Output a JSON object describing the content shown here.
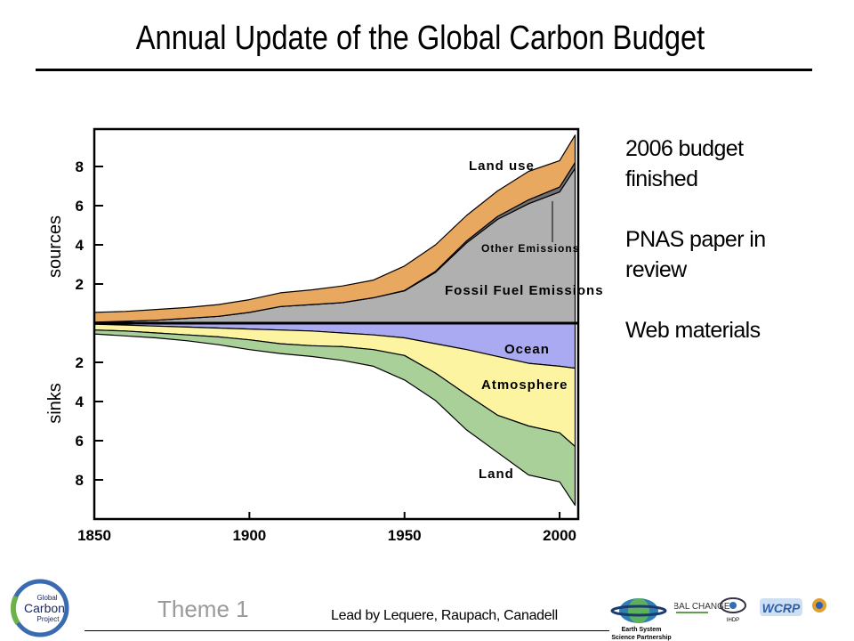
{
  "slide": {
    "title": "Annual Update of the Global Carbon Budget",
    "bullets": [
      "2006 budget\nfinished",
      "PNAS paper in\nreview",
      "Web materials"
    ],
    "theme_label": "Theme 1",
    "credit": "Lead by Lequere, Raupach, Canadell",
    "logos": {
      "gcp": {
        "line1": "Global",
        "line2": "Carbon",
        "line3": "Project"
      },
      "essp": {
        "line1": "Earth System",
        "line2": "Science Partnership"
      },
      "partners": [
        "GLOBAL CHANGE",
        "IHDP",
        "WCRP"
      ]
    }
  },
  "chart_data": {
    "type": "area",
    "x": [
      1850,
      1860,
      1870,
      1880,
      1890,
      1900,
      1910,
      1920,
      1930,
      1940,
      1950,
      1960,
      1970,
      1980,
      1990,
      2000,
      2005
    ],
    "xlim": [
      1850,
      2006
    ],
    "x_ticks": [
      1850,
      1900,
      1950,
      2000
    ],
    "ylim": [
      -10,
      10
    ],
    "y_tick_values": [
      8,
      6,
      4,
      2,
      -2,
      -4,
      -6,
      -8
    ],
    "y_tick_labels": [
      "8",
      "6",
      "4",
      "2",
      "2",
      "4",
      "6",
      "8"
    ],
    "ylabel_top": "sources",
    "ylabel_bottom": "sinks",
    "sources": [
      {
        "name": "Fossil Fuel Emissions",
        "color": "#b0b0b0",
        "values": [
          0.05,
          0.1,
          0.15,
          0.25,
          0.35,
          0.55,
          0.85,
          0.95,
          1.05,
          1.3,
          1.65,
          2.6,
          4.1,
          5.3,
          6.1,
          6.7,
          7.9
        ]
      },
      {
        "name": "Other Emissions",
        "color": "#707070",
        "values": [
          0,
          0,
          0,
          0,
          0,
          0,
          0,
          0,
          0,
          0,
          0.02,
          0.05,
          0.1,
          0.15,
          0.2,
          0.25,
          0.3
        ]
      },
      {
        "name": "Land use",
        "color": "#e8a860",
        "values": [
          0.5,
          0.5,
          0.55,
          0.55,
          0.6,
          0.65,
          0.7,
          0.75,
          0.85,
          0.9,
          1.25,
          1.35,
          1.3,
          1.3,
          1.45,
          1.35,
          1.4
        ]
      }
    ],
    "sinks": [
      {
        "name": "Ocean",
        "color": "#aaaaf2",
        "values": [
          0.05,
          0.1,
          0.15,
          0.2,
          0.25,
          0.3,
          0.35,
          0.4,
          0.5,
          0.6,
          0.75,
          1.05,
          1.35,
          1.7,
          2.05,
          2.2,
          2.3
        ]
      },
      {
        "name": "Atmosphere",
        "color": "#fdf4a2",
        "values": [
          0.3,
          0.3,
          0.35,
          0.4,
          0.45,
          0.55,
          0.7,
          0.75,
          0.7,
          0.75,
          0.9,
          1.5,
          2.3,
          3.0,
          3.2,
          3.4,
          4.0
        ]
      },
      {
        "name": "Land",
        "color": "#a8d098",
        "values": [
          0.2,
          0.25,
          0.25,
          0.3,
          0.4,
          0.5,
          0.5,
          0.55,
          0.7,
          0.85,
          1.25,
          1.4,
          1.8,
          1.9,
          2.5,
          2.5,
          3.0
        ]
      }
    ],
    "annotations": [
      "Land use",
      "Other Emissions",
      "Fossil Fuel Emissions",
      "Ocean",
      "Atmosphere",
      "Land"
    ]
  }
}
